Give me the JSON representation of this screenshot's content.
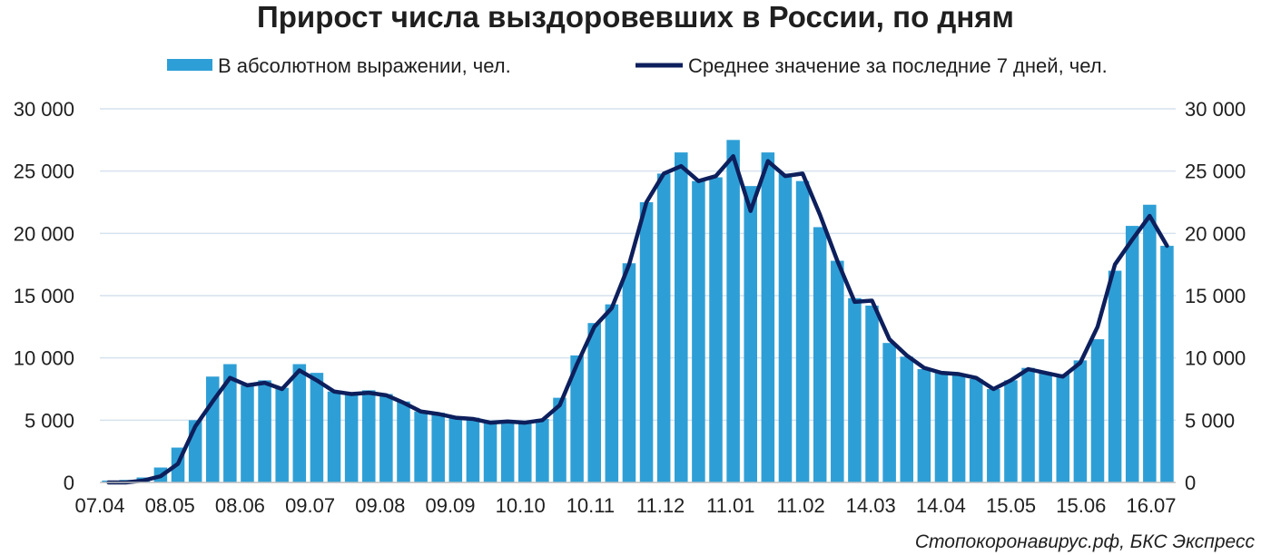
{
  "chart_data": {
    "type": "bar+line",
    "title": "Прирост числа выздоровевших в России, по дням",
    "source": "Стопокоронавирус.рф, БКС Экспресс",
    "legend_position": "top",
    "grid": true,
    "x_tick_labels": [
      "07.04",
      "08.05",
      "08.06",
      "09.07",
      "09.08",
      "09.09",
      "10.10",
      "10.11",
      "11.12",
      "11.01",
      "11.02",
      "14.03",
      "14.04",
      "15.05",
      "15.06",
      "16.07"
    ],
    "y_tick_labels": [
      "0",
      "5 000",
      "10 000",
      "15 000",
      "20 000",
      "25 000",
      "30 000"
    ],
    "ylim": [
      0,
      30000
    ],
    "colors": {
      "bars": "#2e9fd6",
      "line": "#0d1f5c"
    },
    "sampling": "every 7 days, starting 07.04",
    "series": [
      {
        "name": "В абсолютном выражении, чел.",
        "type": "bar",
        "values": [
          150,
          200,
          400,
          1200,
          2800,
          5000,
          8500,
          9500,
          7800,
          8200,
          7600,
          9500,
          8800,
          7300,
          7200,
          7400,
          7100,
          6500,
          5700,
          5600,
          5300,
          5200,
          4800,
          4900,
          4800,
          5100,
          6800,
          10200,
          12800,
          14300,
          17600,
          22500,
          24800,
          26500,
          24200,
          24500,
          27500,
          23800,
          26500,
          24800,
          24200,
          20500,
          17800,
          14800,
          14200,
          11200,
          10100,
          9100,
          8800,
          8600,
          8300,
          7500,
          8200,
          9200,
          8800,
          8700,
          9800,
          11500,
          17000,
          20600,
          22300,
          19000
        ]
      },
      {
        "name": "Среднее значение за последние 7 дней, чел.",
        "type": "line",
        "values": [
          0,
          0,
          150,
          500,
          1500,
          4500,
          6500,
          8400,
          7800,
          8000,
          7500,
          9000,
          8200,
          7300,
          7100,
          7200,
          7000,
          6400,
          5700,
          5500,
          5200,
          5100,
          4800,
          4900,
          4800,
          5000,
          6200,
          9500,
          12500,
          14000,
          17500,
          22500,
          24800,
          25400,
          24200,
          24600,
          26200,
          21800,
          25800,
          24600,
          24800,
          21500,
          17800,
          14500,
          14600,
          11500,
          10200,
          9200,
          8800,
          8700,
          8400,
          7500,
          8200,
          9100,
          8800,
          8500,
          9600,
          12500,
          17500,
          19500,
          21400,
          19000
        ]
      }
    ]
  }
}
